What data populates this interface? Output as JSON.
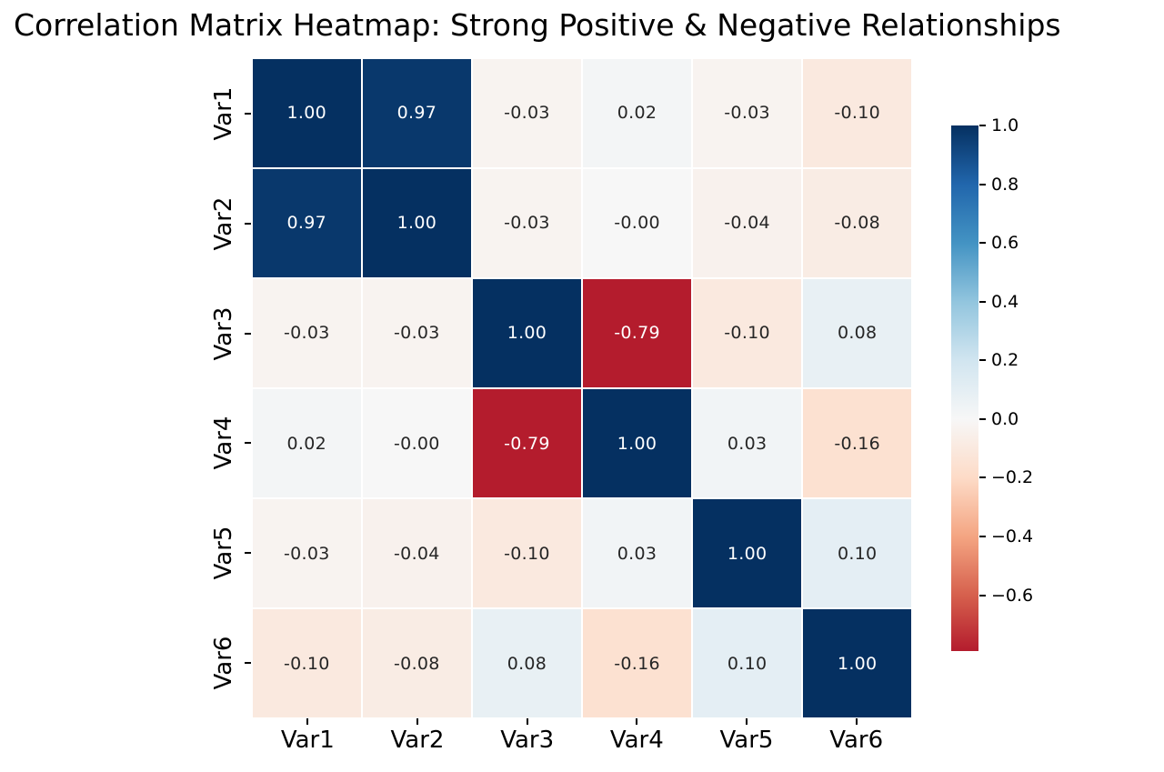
{
  "chart_data": {
    "type": "heatmap",
    "title": "Correlation Matrix Heatmap: Strong Positive & Negative Relationships",
    "x_labels": [
      "Var1",
      "Var2",
      "Var3",
      "Var4",
      "Var5",
      "Var6"
    ],
    "y_labels": [
      "Var1",
      "Var2",
      "Var3",
      "Var4",
      "Var5",
      "Var6"
    ],
    "values": [
      [
        1.0,
        0.97,
        -0.03,
        0.02,
        -0.03,
        -0.1
      ],
      [
        0.97,
        1.0,
        -0.03,
        -0.0,
        -0.04,
        -0.08
      ],
      [
        -0.03,
        -0.03,
        1.0,
        -0.79,
        -0.1,
        0.08
      ],
      [
        0.02,
        -0.0,
        -0.79,
        1.0,
        0.03,
        -0.16
      ],
      [
        -0.03,
        -0.04,
        -0.1,
        0.03,
        1.0,
        0.1
      ],
      [
        -0.1,
        -0.08,
        0.08,
        -0.16,
        0.1,
        1.0
      ]
    ],
    "cell_text": [
      [
        "1.00",
        "0.97",
        "-0.03",
        "0.02",
        "-0.03",
        "-0.10"
      ],
      [
        "0.97",
        "1.00",
        "-0.03",
        "-0.00",
        "-0.04",
        "-0.08"
      ],
      [
        "-0.03",
        "-0.03",
        "1.00",
        "-0.79",
        "-0.10",
        "0.08"
      ],
      [
        "0.02",
        "-0.00",
        "-0.79",
        "1.00",
        "0.03",
        "-0.16"
      ],
      [
        "-0.03",
        "-0.04",
        "-0.10",
        "0.03",
        "1.00",
        "0.10"
      ],
      [
        "-0.10",
        "-0.08",
        "0.08",
        "-0.16",
        "0.10",
        "1.00"
      ]
    ],
    "cell_colors": [
      [
        "#053061",
        "#09386c",
        "#f8f3f0",
        "#f3f5f6",
        "#f8f3f0",
        "#fae9df"
      ],
      [
        "#09386c",
        "#053061",
        "#f8f3f0",
        "#f7f7f7",
        "#f8f1ed",
        "#f9ece4"
      ],
      [
        "#f8f3f0",
        "#f8f3f0",
        "#053061",
        "#b41c2d",
        "#fae9df",
        "#e8f0f4"
      ],
      [
        "#f3f5f6",
        "#f7f7f7",
        "#b41c2d",
        "#053061",
        "#f1f4f6",
        "#fce1d1"
      ],
      [
        "#f8f3f0",
        "#f8f1ed",
        "#fae9df",
        "#f1f4f6",
        "#053061",
        "#e4eef4"
      ],
      [
        "#fae9df",
        "#f9ece4",
        "#e8f0f4",
        "#fce1d1",
        "#e4eef4",
        "#053061"
      ]
    ],
    "annot_dark_color": "#262626",
    "annot_light_color": "#ffffff",
    "grid_line_color": "#ffffff",
    "colormap": "RdBu centered at 0",
    "colorbar": {
      "vmin": -0.79,
      "vmax": 1.0,
      "tick_values": [
        1.0,
        0.8,
        0.6,
        0.4,
        0.2,
        0.0,
        -0.2,
        -0.4,
        -0.6
      ],
      "tick_labels": [
        "1.0",
        "0.8",
        "0.6",
        "0.4",
        "0.2",
        "0.0",
        "−0.2",
        "−0.4",
        "−0.6"
      ],
      "gradient_stops": [
        {
          "pos": 0.0,
          "color": "#053061"
        },
        {
          "pos": 11.17,
          "color": "#2166ac"
        },
        {
          "pos": 22.35,
          "color": "#4393c3"
        },
        {
          "pos": 33.52,
          "color": "#92c5de"
        },
        {
          "pos": 44.69,
          "color": "#d1e5f0"
        },
        {
          "pos": 55.87,
          "color": "#f7f7f7"
        },
        {
          "pos": 67.04,
          "color": "#fddbc7"
        },
        {
          "pos": 78.21,
          "color": "#f4a582"
        },
        {
          "pos": 89.39,
          "color": "#d6604d"
        },
        {
          "pos": 100.0,
          "color": "#b41c2d"
        }
      ]
    }
  }
}
